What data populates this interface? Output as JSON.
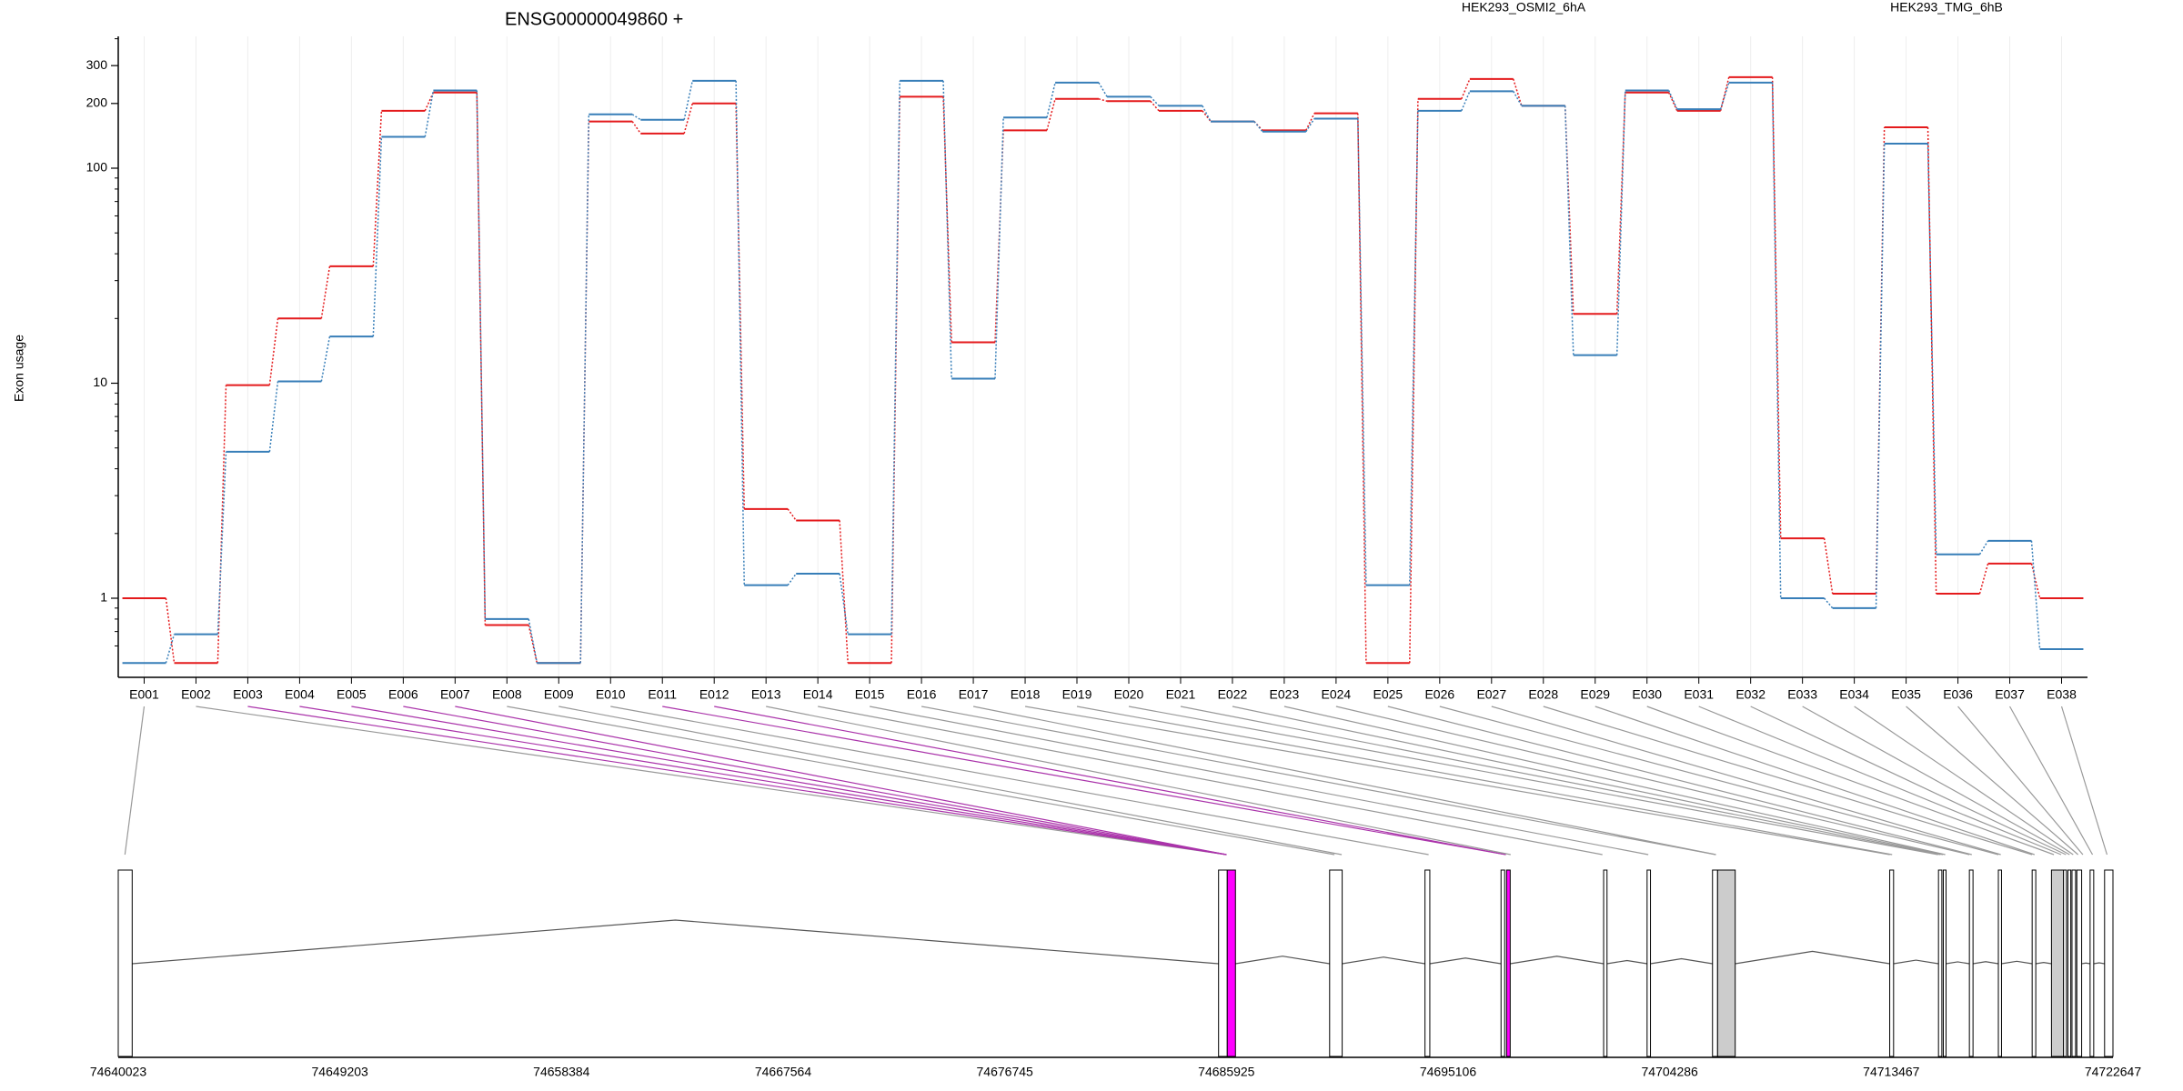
{
  "chart_data": {
    "type": "line",
    "title": "ENSG00000049860 +",
    "ylabel": "Exon usage",
    "y_scale": "log",
    "y_ticks": [
      1,
      10,
      100,
      200,
      300
    ],
    "grid": true,
    "legend_placement": "top-right",
    "categories": [
      "E001",
      "E002",
      "E003",
      "E004",
      "E005",
      "E006",
      "E007",
      "E008",
      "E009",
      "E010",
      "E011",
      "E012",
      "E013",
      "E014",
      "E015",
      "E016",
      "E017",
      "E018",
      "E019",
      "E020",
      "E021",
      "E022",
      "E023",
      "E024",
      "E025",
      "E026",
      "E027",
      "E028",
      "E029",
      "E030",
      "E031",
      "E032",
      "E033",
      "E034",
      "E035",
      "E036",
      "E037",
      "E038"
    ],
    "series": [
      {
        "name": "HEK293_OSMI2_6hA",
        "color": "#e41a1c",
        "values": [
          1.0,
          0.5,
          9.8,
          20,
          35,
          185,
          225,
          0.75,
          0.5,
          165,
          145,
          200,
          2.6,
          2.3,
          0.5,
          215,
          15.5,
          150,
          210,
          205,
          185,
          165,
          150,
          180,
          0.5,
          210,
          260,
          195,
          21,
          225,
          185,
          265,
          1.9,
          1.05,
          155,
          1.05,
          1.45,
          1.0
        ]
      },
      {
        "name": "HEK293_TMG_6hB",
        "color": "#377eb8",
        "values": [
          0.5,
          0.68,
          4.8,
          10.2,
          16.5,
          140,
          230,
          0.8,
          0.5,
          178,
          168,
          255,
          1.15,
          1.3,
          0.68,
          255,
          10.5,
          172,
          250,
          215,
          195,
          165,
          148,
          170,
          1.15,
          185,
          228,
          195,
          13.5,
          230,
          188,
          250,
          1.0,
          0.9,
          130,
          1.6,
          1.85,
          0.58
        ]
      }
    ],
    "gene_model": {
      "x_ticks": [
        "74640023",
        "74649203",
        "74658384",
        "74667564",
        "74676745",
        "74685925",
        "74695106",
        "74704286",
        "74713467",
        "74722647"
      ],
      "exons": [
        {
          "start": 74640023,
          "end": 74640600,
          "fill": "#ffffff"
        },
        {
          "start": 74685600,
          "end": 74685960,
          "fill": "#ffffff"
        },
        {
          "start": 74685960,
          "end": 74686300,
          "fill": "#ff00ff"
        },
        {
          "start": 74690200,
          "end": 74690720,
          "fill": "#ffffff"
        },
        {
          "start": 74694150,
          "end": 74694350,
          "fill": "#ffffff"
        },
        {
          "start": 74697300,
          "end": 74697450,
          "fill": "#ffffff"
        },
        {
          "start": 74697530,
          "end": 74697680,
          "fill": "#ff00ff"
        },
        {
          "start": 74701550,
          "end": 74701690,
          "fill": "#ffffff"
        },
        {
          "start": 74703350,
          "end": 74703490,
          "fill": "#ffffff"
        },
        {
          "start": 74706060,
          "end": 74706270,
          "fill": "#ffffff"
        },
        {
          "start": 74706270,
          "end": 74707000,
          "fill": "#cccccc"
        },
        {
          "start": 74713400,
          "end": 74713560,
          "fill": "#ffffff"
        },
        {
          "start": 74715420,
          "end": 74715560,
          "fill": "#ffffff"
        },
        {
          "start": 74715620,
          "end": 74715730,
          "fill": "#ffffff"
        },
        {
          "start": 74716700,
          "end": 74716850,
          "fill": "#ffffff"
        },
        {
          "start": 74717900,
          "end": 74718030,
          "fill": "#ffffff"
        },
        {
          "start": 74719300,
          "end": 74719450,
          "fill": "#ffffff"
        },
        {
          "start": 74720100,
          "end": 74720600,
          "fill": "#cccccc"
        },
        {
          "start": 74720600,
          "end": 74720720,
          "fill": "#ffffff"
        },
        {
          "start": 74720780,
          "end": 74720900,
          "fill": "#ffffff"
        },
        {
          "start": 74720950,
          "end": 74721100,
          "fill": "#ffffff"
        },
        {
          "start": 74721150,
          "end": 74721350,
          "fill": "#ffffff"
        },
        {
          "start": 74721700,
          "end": 74721850,
          "fill": "#ffffff"
        },
        {
          "start": 74722300,
          "end": 74722647,
          "fill": "#ffffff"
        }
      ],
      "exon_label_links": [
        {
          "exon": "E001",
          "pos": 74640300,
          "color": "#999999"
        },
        {
          "exon": "E002",
          "pos": 74685925,
          "color": "#999999"
        },
        {
          "exon": "E003",
          "pos": 74685925,
          "color": "#aa33aa"
        },
        {
          "exon": "E004",
          "pos": 74685925,
          "color": "#aa33aa"
        },
        {
          "exon": "E005",
          "pos": 74685925,
          "color": "#aa33aa"
        },
        {
          "exon": "E006",
          "pos": 74685925,
          "color": "#aa33aa"
        },
        {
          "exon": "E007",
          "pos": 74685925,
          "color": "#aa33aa"
        },
        {
          "exon": "E008",
          "pos": 74690400,
          "color": "#999999"
        },
        {
          "exon": "E009",
          "pos": 74690700,
          "color": "#999999"
        },
        {
          "exon": "E010",
          "pos": 74694300,
          "color": "#999999"
        },
        {
          "exon": "E011",
          "pos": 74697500,
          "color": "#aa33aa"
        },
        {
          "exon": "E012",
          "pos": 74697500,
          "color": "#aa33aa"
        },
        {
          "exon": "E013",
          "pos": 74697700,
          "color": "#999999"
        },
        {
          "exon": "E014",
          "pos": 74701500,
          "color": "#999999"
        },
        {
          "exon": "E015",
          "pos": 74703400,
          "color": "#999999"
        },
        {
          "exon": "E016",
          "pos": 74706200,
          "color": "#999999"
        },
        {
          "exon": "E017",
          "pos": 74706200,
          "color": "#999999"
        },
        {
          "exon": "E018",
          "pos": 74713400,
          "color": "#999999"
        },
        {
          "exon": "E019",
          "pos": 74713500,
          "color": "#999999"
        },
        {
          "exon": "E020",
          "pos": 74715400,
          "color": "#999999"
        },
        {
          "exon": "E021",
          "pos": 74715500,
          "color": "#999999"
        },
        {
          "exon": "E022",
          "pos": 74715600,
          "color": "#999999"
        },
        {
          "exon": "E023",
          "pos": 74715700,
          "color": "#999999"
        },
        {
          "exon": "E024",
          "pos": 74716700,
          "color": "#999999"
        },
        {
          "exon": "E025",
          "pos": 74716800,
          "color": "#999999"
        },
        {
          "exon": "E026",
          "pos": 74717900,
          "color": "#999999"
        },
        {
          "exon": "E027",
          "pos": 74718000,
          "color": "#999999"
        },
        {
          "exon": "E028",
          "pos": 74719300,
          "color": "#999999"
        },
        {
          "exon": "E029",
          "pos": 74719400,
          "color": "#999999"
        },
        {
          "exon": "E030",
          "pos": 74720200,
          "color": "#999999"
        },
        {
          "exon": "E031",
          "pos": 74720500,
          "color": "#999999"
        },
        {
          "exon": "E032",
          "pos": 74720700,
          "color": "#999999"
        },
        {
          "exon": "E033",
          "pos": 74720850,
          "color": "#999999"
        },
        {
          "exon": "E034",
          "pos": 74721000,
          "color": "#999999"
        },
        {
          "exon": "E035",
          "pos": 74721200,
          "color": "#999999"
        },
        {
          "exon": "E036",
          "pos": 74721400,
          "color": "#999999"
        },
        {
          "exon": "E037",
          "pos": 74721800,
          "color": "#999999"
        },
        {
          "exon": "E038",
          "pos": 74722400,
          "color": "#999999"
        }
      ]
    }
  }
}
